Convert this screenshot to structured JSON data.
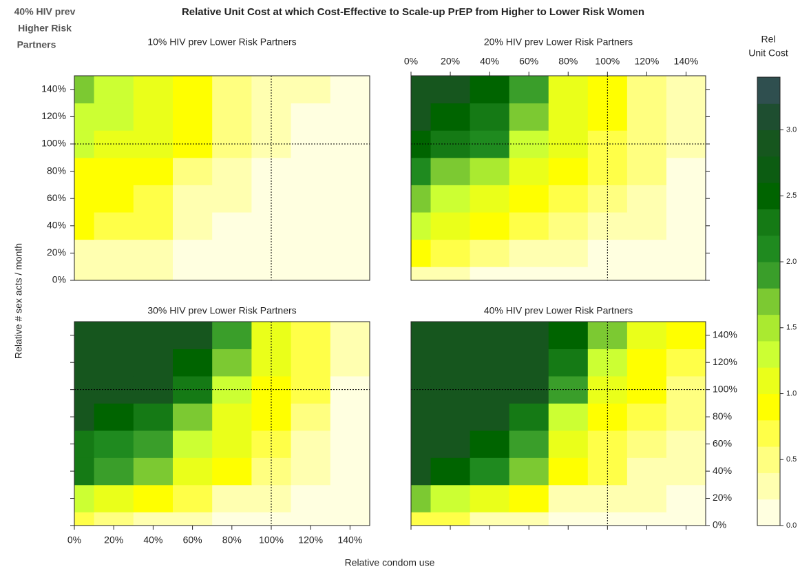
{
  "chart_data": {
    "type": "heatmap",
    "title": "Relative Unit Cost at which Cost-Effective to Scale-up PrEP from Higher to Lower Risk Women",
    "corner_label": [
      "40% HIV prev",
      "Higher Risk",
      "Partners"
    ],
    "xlabel": "Relative condom use",
    "ylabel": "Relative # sex acts / month",
    "x": [
      0,
      20,
      40,
      60,
      80,
      100,
      120,
      140
    ],
    "y": [
      0,
      20,
      40,
      60,
      80,
      100,
      120,
      140
    ],
    "xlim": [
      0,
      150
    ],
    "ylim": [
      0,
      150
    ],
    "xticks": [
      {
        "value": 0,
        "label": "0%"
      },
      {
        "value": 20,
        "label": "20%"
      },
      {
        "value": 40,
        "label": "40%"
      },
      {
        "value": 60,
        "label": "60%"
      },
      {
        "value": 80,
        "label": "80%"
      },
      {
        "value": 100,
        "label": "100%"
      },
      {
        "value": 120,
        "label": "120%"
      },
      {
        "value": 140,
        "label": "140%"
      }
    ],
    "yticks": [
      {
        "value": 0,
        "label": "0%"
      },
      {
        "value": 20,
        "label": "20%"
      },
      {
        "value": 40,
        "label": "40%"
      },
      {
        "value": 60,
        "label": "60%"
      },
      {
        "value": 80,
        "label": "80%"
      },
      {
        "value": 100,
        "label": "100%"
      },
      {
        "value": 120,
        "label": "120%"
      },
      {
        "value": 140,
        "label": "140%"
      }
    ],
    "reference_lines": {
      "x": 100,
      "y": 100
    },
    "panels": [
      {
        "title": "10% HIV prev Lower Risk Partners",
        "z": [
          [
            0.3,
            0.3,
            0.3,
            0.1,
            0.1,
            0.1,
            0.1,
            0.1
          ],
          [
            0.3,
            0.3,
            0.3,
            0.1,
            0.1,
            0.1,
            0.1,
            0.1
          ],
          [
            0.8,
            0.6,
            0.6,
            0.3,
            0.1,
            0.1,
            0.1,
            0.1
          ],
          [
            0.8,
            0.8,
            0.6,
            0.3,
            0.3,
            0.1,
            0.1,
            0.1
          ],
          [
            0.9,
            0.9,
            0.8,
            0.5,
            0.3,
            0.1,
            0.1,
            0.1
          ],
          [
            1.3,
            1.1,
            1.0,
            0.8,
            0.5,
            0.3,
            0.1,
            0.1
          ],
          [
            1.3,
            1.2,
            1.1,
            0.8,
            0.5,
            0.3,
            0.1,
            0.1
          ],
          [
            1.7,
            1.3,
            1.1,
            0.9,
            0.5,
            0.3,
            0.3,
            0.1
          ]
        ]
      },
      {
        "title": "20% HIV prev Lower Risk Partners",
        "z": [
          [
            0.3,
            0.3,
            0.1,
            0.1,
            0.1,
            0.1,
            0.1,
            0.1
          ],
          [
            0.9,
            0.7,
            0.5,
            0.3,
            0.3,
            0.1,
            0.1,
            0.1
          ],
          [
            1.3,
            1.1,
            0.9,
            0.7,
            0.5,
            0.3,
            0.3,
            0.1
          ],
          [
            1.7,
            1.3,
            1.1,
            0.9,
            0.7,
            0.5,
            0.3,
            0.1
          ],
          [
            2.1,
            1.7,
            1.5,
            1.1,
            0.9,
            0.7,
            0.5,
            0.1
          ],
          [
            2.5,
            2.3,
            2.1,
            1.3,
            1.1,
            0.7,
            0.5,
            0.3
          ],
          [
            2.9,
            2.5,
            2.3,
            1.7,
            1.1,
            0.9,
            0.5,
            0.3
          ],
          [
            2.9,
            2.9,
            2.5,
            1.9,
            1.1,
            0.9,
            0.5,
            0.3
          ]
        ]
      },
      {
        "title": "30% HIV prev Lower Risk Partners",
        "z": [
          [
            0.7,
            0.5,
            0.3,
            0.3,
            0.1,
            0.1,
            0.1,
            0.1
          ],
          [
            1.3,
            1.1,
            0.9,
            0.7,
            0.3,
            0.3,
            0.1,
            0.1
          ],
          [
            2.3,
            1.9,
            1.7,
            1.1,
            0.9,
            0.5,
            0.3,
            0.1
          ],
          [
            2.3,
            2.1,
            1.9,
            1.3,
            1.1,
            0.7,
            0.3,
            0.1
          ],
          [
            2.9,
            2.5,
            2.3,
            1.7,
            1.1,
            0.9,
            0.5,
            0.1
          ],
          [
            2.9,
            2.9,
            2.9,
            2.3,
            1.3,
            0.9,
            0.7,
            0.1
          ],
          [
            2.9,
            2.9,
            2.9,
            2.5,
            1.7,
            1.1,
            0.7,
            0.3
          ],
          [
            2.9,
            2.9,
            2.9,
            2.9,
            1.9,
            1.1,
            0.7,
            0.3
          ]
        ]
      },
      {
        "title": "40% HIV prev Lower Risk Partners",
        "z": [
          [
            0.7,
            0.7,
            0.3,
            0.3,
            0.1,
            0.1,
            0.1,
            0.1
          ],
          [
            1.7,
            1.3,
            1.1,
            0.9,
            0.3,
            0.3,
            0.3,
            0.1
          ],
          [
            2.9,
            2.5,
            2.1,
            1.7,
            0.9,
            0.7,
            0.3,
            0.3
          ],
          [
            2.9,
            2.9,
            2.5,
            1.9,
            1.1,
            0.7,
            0.5,
            0.3
          ],
          [
            2.9,
            2.9,
            2.9,
            2.3,
            1.3,
            0.9,
            0.7,
            0.5
          ],
          [
            2.9,
            2.9,
            2.9,
            2.9,
            1.9,
            1.1,
            0.9,
            0.5
          ],
          [
            2.9,
            2.9,
            2.9,
            2.9,
            2.3,
            1.3,
            0.9,
            0.7
          ],
          [
            2.9,
            2.9,
            2.9,
            2.9,
            2.5,
            1.7,
            1.1,
            0.9
          ]
        ]
      }
    ],
    "colorbar": {
      "title": [
        "Rel",
        "Unit Cost"
      ],
      "lim": [
        0,
        3.4
      ],
      "breaks": [
        0,
        0.2,
        0.4,
        0.6,
        0.8,
        1.0,
        1.2,
        1.4,
        1.6,
        1.8,
        2.0,
        2.2,
        2.4,
        2.6,
        2.8,
        3.0,
        3.2,
        3.4
      ],
      "colors": [
        "#ffffe0",
        "#ffffb0",
        "#ffff80",
        "#ffff48",
        "#ffff00",
        "#eaff1a",
        "#ccff33",
        "#aaea30",
        "#7cc932",
        "#3a9e2a",
        "#1f8a1f",
        "#157a15",
        "#006400",
        "#0c5c12",
        "#16561e",
        "#1e4e30",
        "#2f4f4f"
      ],
      "ticks": [
        {
          "value": 0,
          "label": "0.0"
        },
        0.5,
        {
          "value": 1,
          "label": "1.0"
        },
        1.5,
        {
          "value": 2,
          "label": "2.0"
        },
        2.5,
        {
          "value": 3,
          "label": "3.0"
        }
      ]
    }
  }
}
